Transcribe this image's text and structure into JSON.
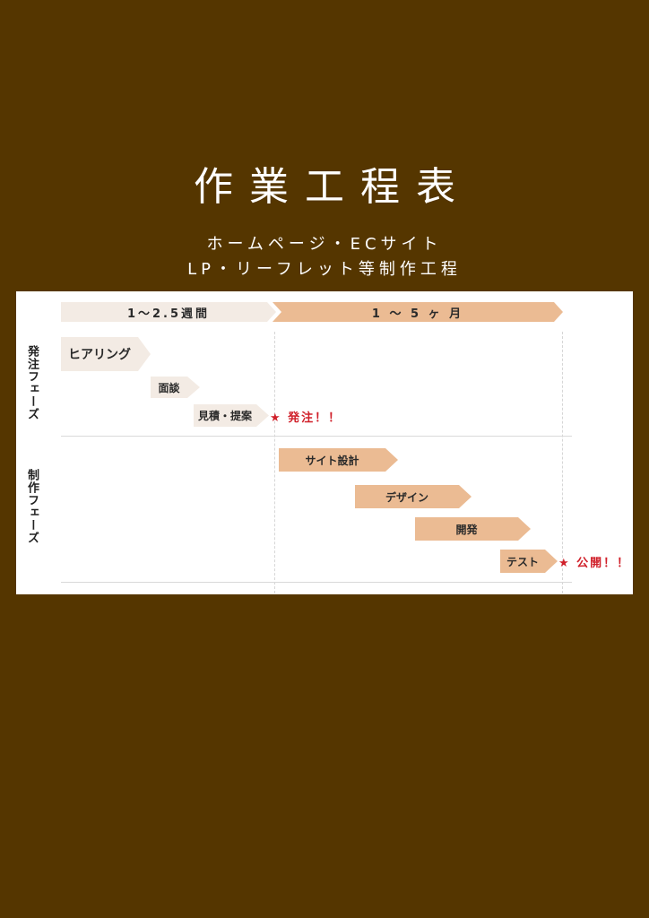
{
  "title": "作業工程表",
  "subtitle_lines": [
    "ホームページ・ECサイト",
    "LP・リーフレット等制作工程"
  ],
  "colors": {
    "background": "#553600",
    "light_bar": "#f3ebe4",
    "accent_bar": "#ebbb93",
    "milestone": "#d0202a"
  },
  "timeline": {
    "period_1": "1～2.5週間",
    "period_2": "1 ～ 5 ヶ 月"
  },
  "phases": {
    "order": "発注フェーズ",
    "production": "制作フェーズ"
  },
  "tasks": [
    "ヒアリング",
    "面談",
    "見積・提案",
    "サイト設計",
    "デザイン",
    "開発",
    "テスト"
  ],
  "milestones": {
    "order": "★ 発注！！",
    "release": "★ 公開！！"
  }
}
